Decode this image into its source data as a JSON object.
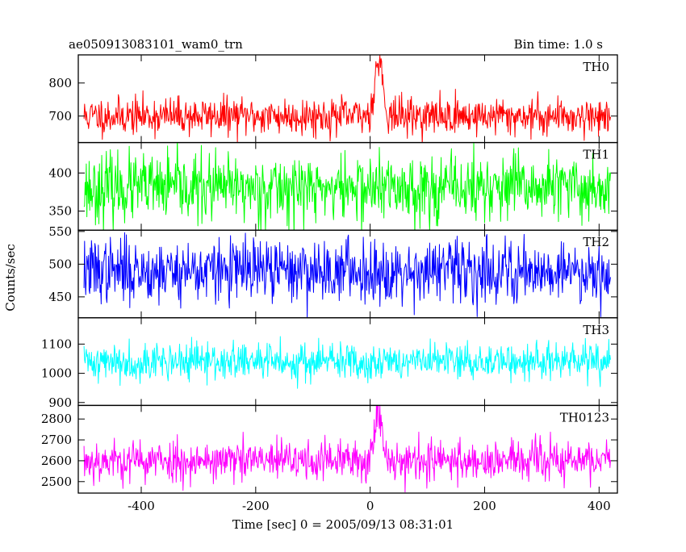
{
  "chart_data": {
    "type": "line",
    "title": "ae050913083101_wam0_trn",
    "subtitle": "Bin time: 1.0 s",
    "xlabel": "Time [sec] 0 = 2005/09/13 08:31:01",
    "ylabel": "Counts/sec",
    "xlim": [
      -510,
      432
    ],
    "xticks": [
      -400,
      -200,
      0,
      200,
      400
    ],
    "x_start": -500,
    "x_end": 420,
    "x_step": 1,
    "grid": false,
    "panels": [
      {
        "name": "TH0",
        "color": "#ff0000",
        "ylim": [
          620,
          885
        ],
        "yticks": [
          700,
          800
        ],
        "baseline": 700,
        "noise_sd": 28,
        "peak": {
          "x": 15,
          "height": 170,
          "width": 7
        },
        "seed": 11
      },
      {
        "name": "TH1",
        "color": "#00ff00",
        "ylim": [
          325,
          440
        ],
        "yticks": [
          350,
          400
        ],
        "baseline": 380,
        "noise_sd": 22,
        "peak": null,
        "seed": 23
      },
      {
        "name": "TH2",
        "color": "#0000ff",
        "ylim": [
          418,
          552
        ],
        "yticks": [
          450,
          500,
          550
        ],
        "baseline": 490,
        "noise_sd": 24,
        "peak": null,
        "seed": 37
      },
      {
        "name": "TH3",
        "color": "#00ffff",
        "ylim": [
          890,
          1190
        ],
        "yticks": [
          900,
          1000,
          1100
        ],
        "baseline": 1040,
        "noise_sd": 32,
        "peak": null,
        "seed": 41
      },
      {
        "name": "TH0123",
        "color": "#ff00ff",
        "ylim": [
          2445,
          2865
        ],
        "yticks": [
          2500,
          2600,
          2700,
          2800
        ],
        "baseline": 2600,
        "noise_sd": 50,
        "peak": {
          "x": 15,
          "height": 230,
          "width": 7
        },
        "seed": 53
      }
    ]
  }
}
